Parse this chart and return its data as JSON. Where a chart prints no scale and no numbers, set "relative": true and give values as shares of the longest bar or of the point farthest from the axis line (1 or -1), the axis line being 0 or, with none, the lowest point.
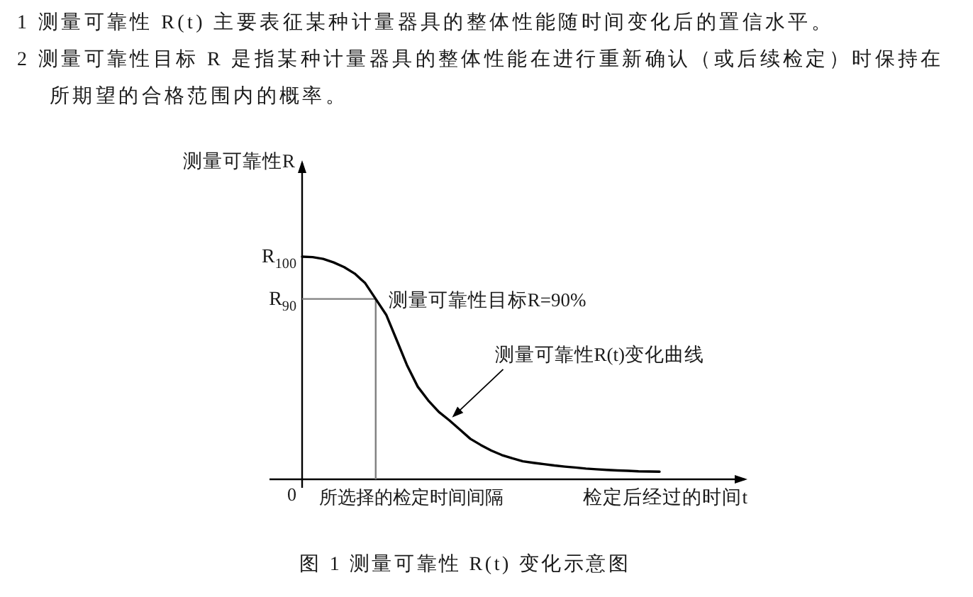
{
  "chart_data": {
    "type": "line",
    "title": "图 1 测量可靠性 R(t) 变化示意图",
    "ylabel": "测量可靠性R",
    "xlabel": "检定后经过的时间t",
    "relative": true,
    "categories": [
      null,
      null,
      null,
      null,
      null,
      null,
      null,
      null,
      null,
      null,
      null,
      null,
      null,
      null,
      null,
      null,
      null,
      null,
      null,
      null,
      null,
      null,
      null,
      null,
      null,
      null,
      null,
      null,
      null,
      null,
      null,
      null,
      null,
      null,
      null
    ],
    "series": [
      {
        "name": "测量可靠性R(t)变化曲线",
        "color": "#000000",
        "values": [
          1,
          0.998,
          0.99,
          0.974,
          0.953,
          0.924,
          0.881,
          0.81,
          0.739,
          0.625,
          0.51,
          0.416,
          0.354,
          0.303,
          0.265,
          0.224,
          0.182,
          0.154,
          0.129,
          0.109,
          0.094,
          0.081,
          0.074,
          0.068,
          0.062,
          0.057,
          0.053,
          0.048,
          0.045,
          0.042,
          0.04,
          0.038,
          0.036,
          0.035,
          0.034
        ]
      }
    ],
    "ref_lines": [
      {
        "axis": "y",
        "value": 0.81,
        "label": "R$_{90}$",
        "color": "#808080"
      }
    ],
    "annotations": [
      "1 测量可靠性 R(t) 主要表征某种计量器具的整体性能随时间变化后的置信水平。",
      "2 测量可靠性目标 R 是指某种计量器具的整体性能在进行重新确认（或后续检定）时保持在所期望的合格范围内的概率。",
      "R$_{100}$",
      "0",
      "测量可靠性目标R=90%",
      "所选择的检定时间间隔"
    ]
  }
}
